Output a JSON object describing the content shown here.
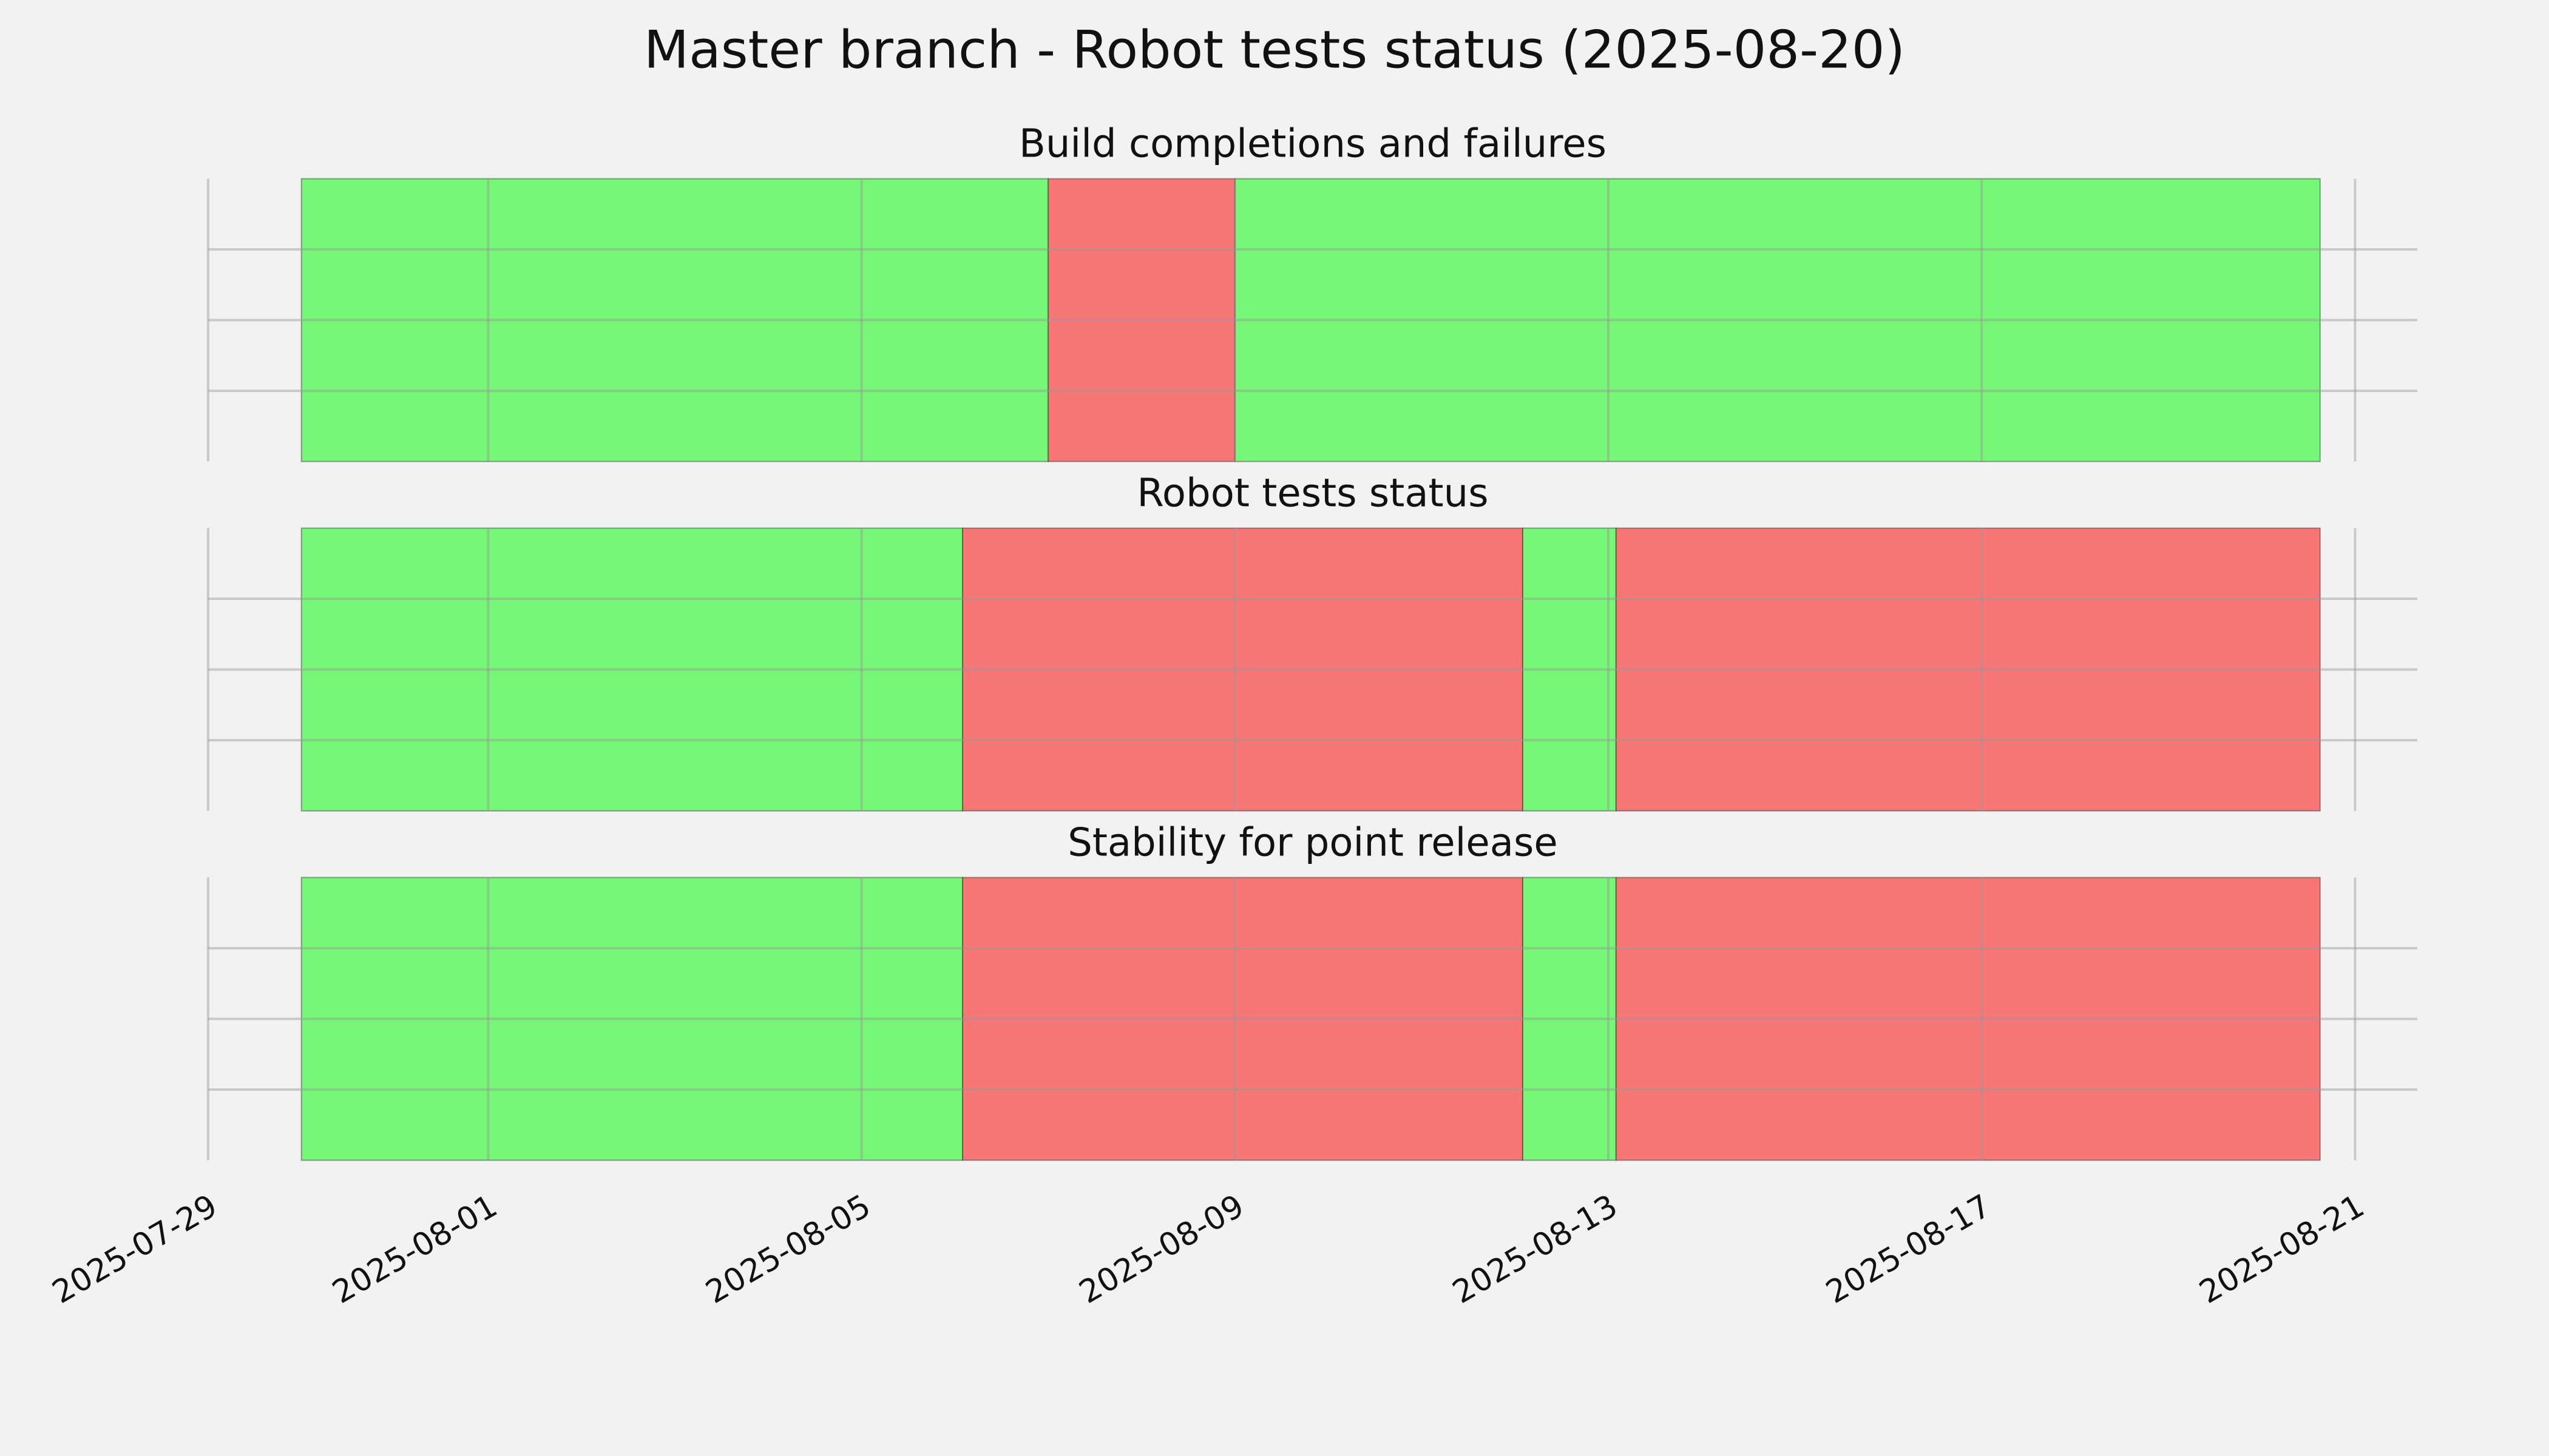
{
  "chart_data": [
    {
      "type": "timeline",
      "title": "Build completions and failures",
      "spans": [
        {
          "start": "2025-07-30T00:00",
          "end": "2025-08-07T00:00",
          "color": "#77f777"
        },
        {
          "start": "2025-08-07T00:00",
          "end": "2025-08-09T00:00",
          "color": "#f77777"
        },
        {
          "start": "2025-08-09T00:00",
          "end": "2025-08-20T15:00",
          "color": "#77f777"
        }
      ],
      "xlim": [
        "2025-07-29T00:00",
        "2025-08-21T16:00"
      ],
      "xticks": [
        "2025-07-29",
        "2025-08-01",
        "2025-08-05",
        "2025-08-09",
        "2025-08-13",
        "2025-08-17",
        "2025-08-21"
      ],
      "ylim": [
        0,
        1
      ],
      "yticks": [
        0.25,
        0.5,
        0.75
      ],
      "grid": true
    },
    {
      "type": "timeline",
      "title": "Robot tests status",
      "spans": [
        {
          "start": "2025-07-30T00:00",
          "end": "2025-08-06T02:00",
          "color": "#77f777"
        },
        {
          "start": "2025-08-06T02:00",
          "end": "2025-08-12T02:00",
          "color": "#f77777"
        },
        {
          "start": "2025-08-12T02:00",
          "end": "2025-08-13T02:00",
          "color": "#77f777"
        },
        {
          "start": "2025-08-13T02:00",
          "end": "2025-08-20T15:00",
          "color": "#f77777"
        }
      ],
      "xlim": [
        "2025-07-29T00:00",
        "2025-08-21T16:00"
      ],
      "xticks": [
        "2025-07-29",
        "2025-08-01",
        "2025-08-05",
        "2025-08-09",
        "2025-08-13",
        "2025-08-17",
        "2025-08-21"
      ],
      "ylim": [
        0,
        1
      ],
      "yticks": [
        0.25,
        0.5,
        0.75
      ],
      "grid": true
    },
    {
      "type": "timeline",
      "title": "Stability for point release",
      "spans": [
        {
          "start": "2025-07-30T00:00",
          "end": "2025-08-06T02:00",
          "color": "#77f777"
        },
        {
          "start": "2025-08-06T02:00",
          "end": "2025-08-12T02:00",
          "color": "#f77777"
        },
        {
          "start": "2025-08-12T02:00",
          "end": "2025-08-13T02:00",
          "color": "#77f777"
        },
        {
          "start": "2025-08-13T02:00",
          "end": "2025-08-20T15:00",
          "color": "#f77777"
        }
      ],
      "xlim": [
        "2025-07-29T00:00",
        "2025-08-21T16:00"
      ],
      "xticks": [
        "2025-07-29",
        "2025-08-01",
        "2025-08-05",
        "2025-08-09",
        "2025-08-13",
        "2025-08-17",
        "2025-08-21"
      ],
      "ylim": [
        0,
        1
      ],
      "yticks": [
        0.25,
        0.5,
        0.75
      ],
      "grid": true,
      "show_xtick_labels": true
    }
  ],
  "title": "Master branch - Robot tests status (2025-08-20)"
}
